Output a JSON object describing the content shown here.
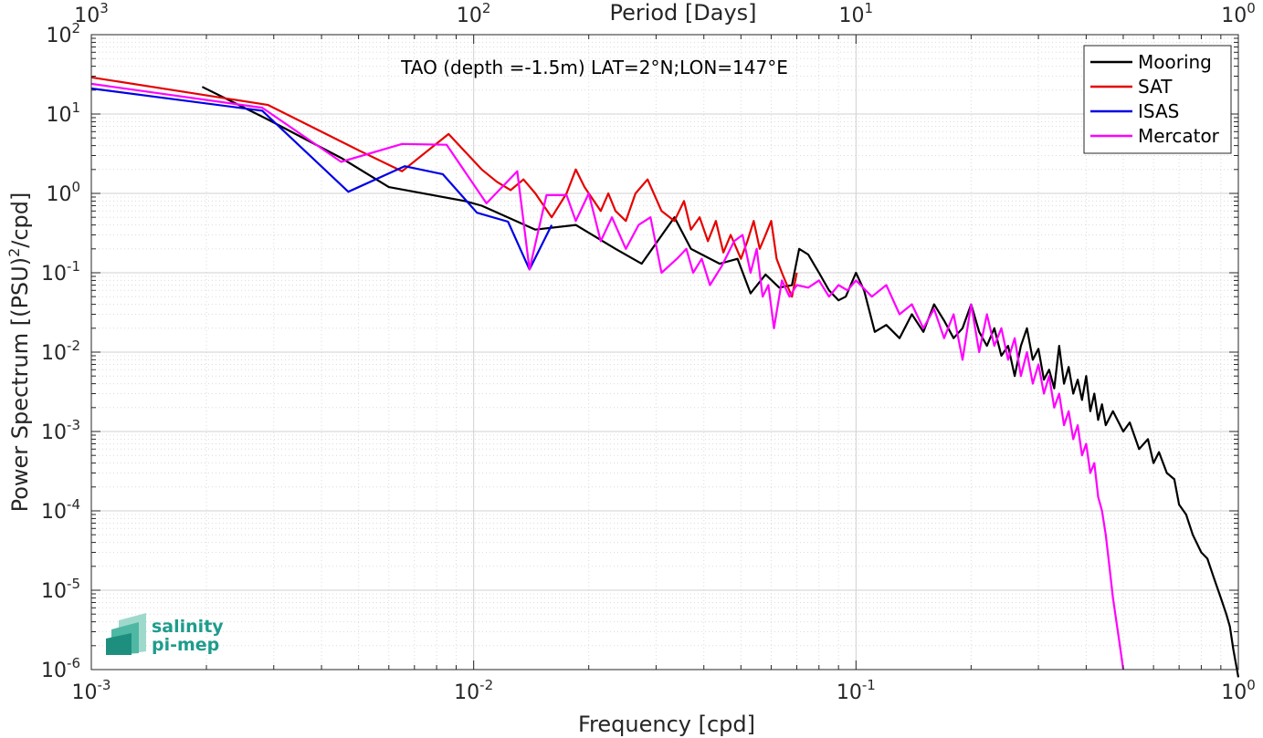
{
  "chart_data": {
    "type": "line",
    "title": "",
    "annotation": "TAO (depth =-1.5m) LAT=2°N;LON=147°E",
    "xlabel": "Frequency [cpd]",
    "ylabel_parts": [
      "Power Spectrum [(PSU)",
      "2",
      "/cpd]"
    ],
    "top_xlabel": "Period [Days]",
    "xscale": "log",
    "yscale": "log",
    "xlim": [
      0.001,
      1
    ],
    "ylim": [
      1e-06,
      100
    ],
    "x_ticks": [
      {
        "value": 0.001,
        "base": "10",
        "exp": "-3"
      },
      {
        "value": 0.01,
        "base": "10",
        "exp": "-2"
      },
      {
        "value": 0.1,
        "base": "10",
        "exp": "-1"
      },
      {
        "value": 1,
        "base": "10",
        "exp": "0"
      }
    ],
    "top_ticks": [
      {
        "value": 0.001,
        "base": "10",
        "exp": "3"
      },
      {
        "value": 0.01,
        "base": "10",
        "exp": "2"
      },
      {
        "value": 0.1,
        "base": "10",
        "exp": "1"
      },
      {
        "value": 1,
        "base": "10",
        "exp": "0"
      }
    ],
    "y_ticks": [
      {
        "value": 1e-06,
        "base": "10",
        "exp": "-6"
      },
      {
        "value": 1e-05,
        "base": "10",
        "exp": "-5"
      },
      {
        "value": 0.0001,
        "base": "10",
        "exp": "-4"
      },
      {
        "value": 0.001,
        "base": "10",
        "exp": "-3"
      },
      {
        "value": 0.01,
        "base": "10",
        "exp": "-2"
      },
      {
        "value": 0.1,
        "base": "10",
        "exp": "-1"
      },
      {
        "value": 1,
        "base": "10",
        "exp": "0"
      },
      {
        "value": 10,
        "base": "10",
        "exp": "1"
      },
      {
        "value": 100,
        "base": "10",
        "exp": "2"
      }
    ],
    "grid": true,
    "legend_position": "top-right",
    "series": [
      {
        "name": "Mooring",
        "color": "#000000",
        "points": [
          [
            0.00195,
            22
          ],
          [
            0.0029,
            8.5
          ],
          [
            0.0045,
            2.8
          ],
          [
            0.006,
            1.2
          ],
          [
            0.0095,
            0.8
          ],
          [
            0.0105,
            0.7
          ],
          [
            0.0145,
            0.35
          ],
          [
            0.0185,
            0.4
          ],
          [
            0.0235,
            0.2
          ],
          [
            0.0275,
            0.13
          ],
          [
            0.0335,
            0.5
          ],
          [
            0.037,
            0.2
          ],
          [
            0.044,
            0.13
          ],
          [
            0.049,
            0.15
          ],
          [
            0.053,
            0.055
          ],
          [
            0.058,
            0.095
          ],
          [
            0.063,
            0.065
          ],
          [
            0.068,
            0.07
          ],
          [
            0.071,
            0.2
          ],
          [
            0.075,
            0.17
          ],
          [
            0.08,
            0.1
          ],
          [
            0.085,
            0.06
          ],
          [
            0.09,
            0.045
          ],
          [
            0.094,
            0.05
          ],
          [
            0.1,
            0.1
          ],
          [
            0.105,
            0.06
          ],
          [
            0.112,
            0.018
          ],
          [
            0.12,
            0.022
          ],
          [
            0.13,
            0.015
          ],
          [
            0.14,
            0.03
          ],
          [
            0.15,
            0.018
          ],
          [
            0.16,
            0.04
          ],
          [
            0.17,
            0.025
          ],
          [
            0.18,
            0.015
          ],
          [
            0.19,
            0.02
          ],
          [
            0.2,
            0.04
          ],
          [
            0.21,
            0.018
          ],
          [
            0.22,
            0.012
          ],
          [
            0.23,
            0.02
          ],
          [
            0.24,
            0.009
          ],
          [
            0.25,
            0.012
          ],
          [
            0.26,
            0.005
          ],
          [
            0.27,
            0.012
          ],
          [
            0.28,
            0.02
          ],
          [
            0.29,
            0.008
          ],
          [
            0.3,
            0.011
          ],
          [
            0.31,
            0.0045
          ],
          [
            0.32,
            0.006
          ],
          [
            0.33,
            0.0035
          ],
          [
            0.34,
            0.012
          ],
          [
            0.35,
            0.004
          ],
          [
            0.36,
            0.0065
          ],
          [
            0.37,
            0.003
          ],
          [
            0.38,
            0.0045
          ],
          [
            0.39,
            0.0025
          ],
          [
            0.4,
            0.005
          ],
          [
            0.41,
            0.0018
          ],
          [
            0.42,
            0.003
          ],
          [
            0.43,
            0.0014
          ],
          [
            0.44,
            0.0022
          ],
          [
            0.45,
            0.0012
          ],
          [
            0.47,
            0.0018
          ],
          [
            0.5,
            0.001
          ],
          [
            0.52,
            0.0013
          ],
          [
            0.55,
            0.0006
          ],
          [
            0.58,
            0.0008
          ],
          [
            0.6,
            0.0004
          ],
          [
            0.62,
            0.00055
          ],
          [
            0.65,
            0.0003
          ],
          [
            0.68,
            0.00025
          ],
          [
            0.7,
            0.00012
          ],
          [
            0.73,
            9e-05
          ],
          [
            0.76,
            5e-05
          ],
          [
            0.8,
            3e-05
          ],
          [
            0.83,
            2.5e-05
          ],
          [
            0.86,
            1.5e-05
          ],
          [
            0.9,
            8e-06
          ],
          [
            0.93,
            5e-06
          ],
          [
            0.95,
            3.5e-06
          ],
          [
            0.97,
            1.8e-06
          ],
          [
            1.0,
            8e-07
          ]
        ]
      },
      {
        "name": "SAT",
        "color": "#e60000",
        "points": [
          [
            0.001,
            29
          ],
          [
            0.0029,
            13
          ],
          [
            0.005,
            3.5
          ],
          [
            0.0065,
            1.9
          ],
          [
            0.0086,
            5.6
          ],
          [
            0.0105,
            2.0
          ],
          [
            0.0115,
            1.4
          ],
          [
            0.0125,
            1.1
          ],
          [
            0.0135,
            1.5
          ],
          [
            0.0145,
            1.0
          ],
          [
            0.016,
            0.5
          ],
          [
            0.0175,
            1.0
          ],
          [
            0.0185,
            2.0
          ],
          [
            0.0195,
            1.2
          ],
          [
            0.0215,
            0.6
          ],
          [
            0.0225,
            1.0
          ],
          [
            0.0235,
            0.6
          ],
          [
            0.025,
            0.45
          ],
          [
            0.0265,
            1.0
          ],
          [
            0.0285,
            1.5
          ],
          [
            0.031,
            0.6
          ],
          [
            0.0335,
            0.45
          ],
          [
            0.0355,
            0.8
          ],
          [
            0.037,
            0.35
          ],
          [
            0.039,
            0.5
          ],
          [
            0.041,
            0.25
          ],
          [
            0.043,
            0.45
          ],
          [
            0.045,
            0.18
          ],
          [
            0.047,
            0.3
          ],
          [
            0.05,
            0.15
          ],
          [
            0.052,
            0.25
          ],
          [
            0.054,
            0.45
          ],
          [
            0.056,
            0.2
          ],
          [
            0.058,
            0.3
          ],
          [
            0.06,
            0.45
          ],
          [
            0.062,
            0.15
          ],
          [
            0.064,
            0.1
          ],
          [
            0.066,
            0.07
          ],
          [
            0.068,
            0.05
          ],
          [
            0.07,
            0.1
          ]
        ]
      },
      {
        "name": "ISAS",
        "color": "#0000e6",
        "points": [
          [
            0.001,
            21
          ],
          [
            0.0028,
            11
          ],
          [
            0.0047,
            1.05
          ],
          [
            0.0066,
            2.2
          ],
          [
            0.0083,
            1.75
          ],
          [
            0.0102,
            0.57
          ],
          [
            0.0123,
            0.44
          ],
          [
            0.014,
            0.11
          ],
          [
            0.016,
            0.4
          ]
        ]
      },
      {
        "name": "Mercator",
        "color": "#ff00ff",
        "points": [
          [
            0.001,
            24
          ],
          [
            0.0028,
            12
          ],
          [
            0.0045,
            2.5
          ],
          [
            0.0065,
            4.2
          ],
          [
            0.0085,
            4.1
          ],
          [
            0.0108,
            0.75
          ],
          [
            0.013,
            1.9
          ],
          [
            0.014,
            0.11
          ],
          [
            0.0155,
            0.95
          ],
          [
            0.0175,
            0.95
          ],
          [
            0.0185,
            0.45
          ],
          [
            0.02,
            1.0
          ],
          [
            0.0215,
            0.25
          ],
          [
            0.023,
            0.5
          ],
          [
            0.025,
            0.2
          ],
          [
            0.027,
            0.4
          ],
          [
            0.029,
            0.5
          ],
          [
            0.031,
            0.1
          ],
          [
            0.034,
            0.15
          ],
          [
            0.036,
            0.2
          ],
          [
            0.0375,
            0.1
          ],
          [
            0.0395,
            0.15
          ],
          [
            0.0415,
            0.07
          ],
          [
            0.0445,
            0.12
          ],
          [
            0.048,
            0.25
          ],
          [
            0.0505,
            0.3
          ],
          [
            0.053,
            0.1
          ],
          [
            0.055,
            0.2
          ],
          [
            0.057,
            0.05
          ],
          [
            0.059,
            0.07
          ],
          [
            0.061,
            0.02
          ],
          [
            0.064,
            0.08
          ],
          [
            0.067,
            0.05
          ],
          [
            0.07,
            0.07
          ],
          [
            0.075,
            0.065
          ],
          [
            0.08,
            0.08
          ],
          [
            0.085,
            0.05
          ],
          [
            0.09,
            0.07
          ],
          [
            0.095,
            0.06
          ],
          [
            0.1,
            0.08
          ],
          [
            0.11,
            0.05
          ],
          [
            0.12,
            0.07
          ],
          [
            0.13,
            0.03
          ],
          [
            0.14,
            0.04
          ],
          [
            0.15,
            0.02
          ],
          [
            0.16,
            0.035
          ],
          [
            0.17,
            0.015
          ],
          [
            0.18,
            0.03
          ],
          [
            0.19,
            0.008
          ],
          [
            0.2,
            0.04
          ],
          [
            0.21,
            0.01
          ],
          [
            0.22,
            0.03
          ],
          [
            0.23,
            0.012
          ],
          [
            0.24,
            0.02
          ],
          [
            0.25,
            0.008
          ],
          [
            0.26,
            0.015
          ],
          [
            0.27,
            0.005
          ],
          [
            0.28,
            0.01
          ],
          [
            0.29,
            0.004
          ],
          [
            0.3,
            0.007
          ],
          [
            0.31,
            0.003
          ],
          [
            0.32,
            0.005
          ],
          [
            0.33,
            0.002
          ],
          [
            0.34,
            0.003
          ],
          [
            0.35,
            0.0012
          ],
          [
            0.36,
            0.0018
          ],
          [
            0.37,
            0.0008
          ],
          [
            0.38,
            0.0012
          ],
          [
            0.39,
            0.0005
          ],
          [
            0.4,
            0.0007
          ],
          [
            0.41,
            0.0003
          ],
          [
            0.42,
            0.0004
          ],
          [
            0.43,
            0.00015
          ],
          [
            0.44,
            0.0001
          ],
          [
            0.45,
            5e-05
          ],
          [
            0.46,
            2e-05
          ],
          [
            0.47,
            8e-06
          ],
          [
            0.48,
            4e-06
          ],
          [
            0.49,
            2e-06
          ],
          [
            0.5,
            1e-06
          ]
        ]
      }
    ]
  },
  "logo": {
    "line1": "salinity",
    "line2": "pi-mep"
  }
}
